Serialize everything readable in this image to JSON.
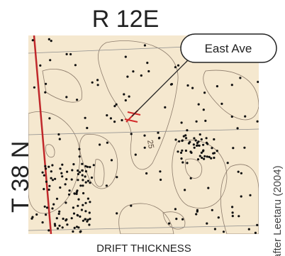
{
  "header": {
    "title": "R 12E"
  },
  "callout": {
    "label": "East Ave"
  },
  "township": "T 38 N",
  "contour_label": "25",
  "caption": "DRIFT THICKNESS",
  "credit": "after Leetaru (2004)"
}
